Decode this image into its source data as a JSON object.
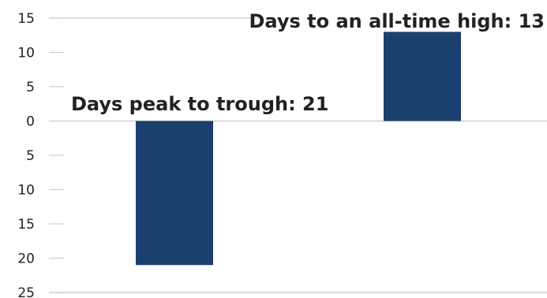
{
  "chart_data": {
    "type": "bar",
    "categories": [
      "Days peak to trough",
      "Days to an all-time high"
    ],
    "values": [
      -21,
      13
    ],
    "data_labels": [
      "Days peak to trough: 21",
      "Days to an all-time high: 13"
    ],
    "y_tick_labels": [
      "15",
      "10",
      "5",
      "0",
      "5",
      "10",
      "15",
      "20",
      "25"
    ],
    "y_tick_values": [
      15,
      10,
      5,
      0,
      -5,
      -10,
      -15,
      -20,
      -25
    ],
    "ylim": [
      -25,
      15
    ],
    "grid": false,
    "colors": {
      "bar": "#1b3f6e",
      "axis": "#d0d0d0",
      "text": "#222222"
    }
  }
}
